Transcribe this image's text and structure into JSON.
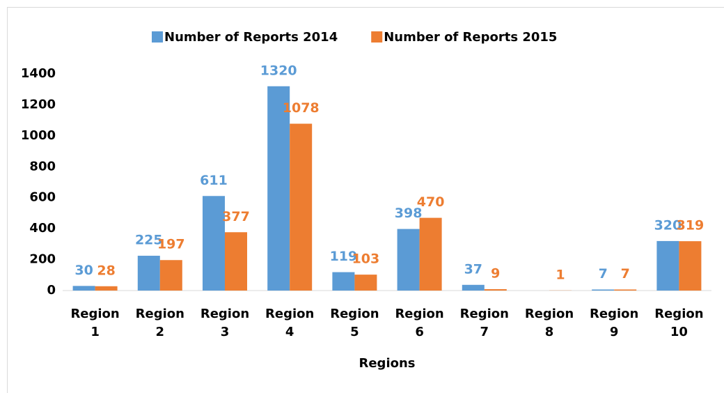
{
  "chart_data": {
    "type": "bar",
    "categories": [
      "Region 1",
      "Region 2",
      "Region 3",
      "Region 4",
      "Region 5",
      "Region 6",
      "Region 7",
      "Region 8",
      "Region 9",
      "Region 10"
    ],
    "series": [
      {
        "name": "Number of Reports 2014",
        "color": "#5b9bd5",
        "values": [
          30,
          225,
          611,
          1320,
          119,
          398,
          37,
          null,
          7,
          320
        ]
      },
      {
        "name": "Number of Reports 2015",
        "color": "#ed7d31",
        "values": [
          28,
          197,
          377,
          1078,
          103,
          470,
          9,
          1,
          7,
          319
        ]
      }
    ],
    "x_label": "Regions",
    "ylim": [
      0,
      1400
    ],
    "yticks": [
      0,
      200,
      400,
      600,
      800,
      1000,
      1200,
      1400
    ],
    "legend": "top"
  }
}
